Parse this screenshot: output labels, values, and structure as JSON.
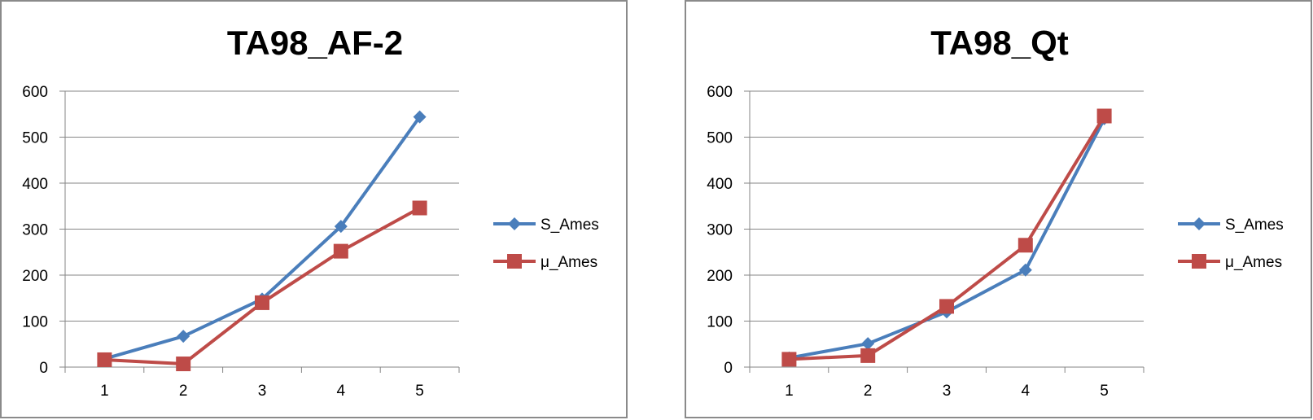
{
  "colors": {
    "s_ames": "#4a7ebb",
    "mu_ames": "#be4b48",
    "grid": "#868686"
  },
  "chart_data": [
    {
      "type": "line",
      "title": "TA98_AF-2",
      "xlabel": "",
      "ylabel": "",
      "categories": [
        "1",
        "2",
        "3",
        "4",
        "5"
      ],
      "ylim": [
        0,
        600
      ],
      "yticks": [
        "0",
        "100",
        "200",
        "300",
        "400",
        "500",
        "600"
      ],
      "grid": "horizontal",
      "legend": "right",
      "series": [
        {
          "name": "S_Ames",
          "marker": "diamond",
          "values": [
            18,
            67,
            148,
            306,
            544
          ]
        },
        {
          "name": "μ_Ames",
          "marker": "square",
          "values": [
            16,
            7,
            140,
            252,
            346
          ]
        }
      ]
    },
    {
      "type": "line",
      "title": "TA98_Qt",
      "xlabel": "",
      "ylabel": "",
      "categories": [
        "1",
        "2",
        "3",
        "4",
        "5"
      ],
      "ylim": [
        0,
        600
      ],
      "yticks": [
        "0",
        "100",
        "200",
        "300",
        "400",
        "500",
        "600"
      ],
      "grid": "horizontal",
      "legend": "right",
      "series": [
        {
          "name": "S_Ames",
          "marker": "diamond",
          "values": [
            20,
            51,
            120,
            211,
            540
          ]
        },
        {
          "name": "μ_Ames",
          "marker": "square",
          "values": [
            17,
            25,
            132,
            265,
            546
          ]
        }
      ]
    }
  ]
}
